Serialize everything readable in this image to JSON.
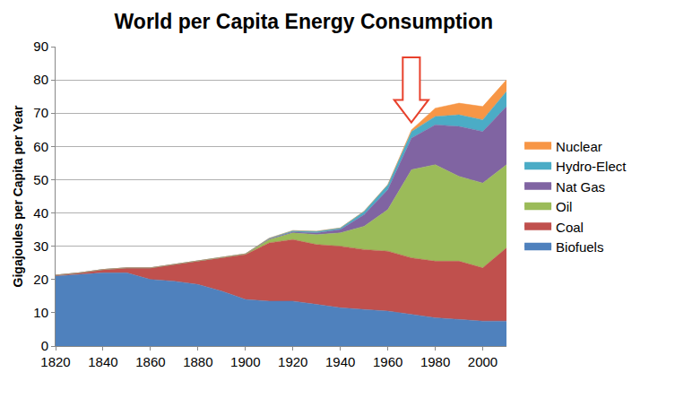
{
  "chart_data": {
    "type": "area",
    "title": "World per Capita Energy Consumption",
    "y_label": "Gigajoules per Capita per Year",
    "stacked": true,
    "grid": true,
    "legend": "right",
    "x": [
      1820,
      1830,
      1840,
      1850,
      1860,
      1870,
      1880,
      1890,
      1900,
      1910,
      1920,
      1930,
      1940,
      1950,
      1960,
      1970,
      1980,
      1990,
      2000,
      2010
    ],
    "xlim": [
      1820,
      2010
    ],
    "xticks": [
      1820,
      1840,
      1860,
      1880,
      1900,
      1920,
      1940,
      1960,
      1980,
      2000
    ],
    "ylim": [
      0,
      90
    ],
    "yticks": [
      0,
      10,
      20,
      30,
      40,
      50,
      60,
      70,
      80,
      90
    ],
    "series": [
      {
        "name": "Biofuels",
        "color": "#4f81bd",
        "values": [
          21,
          21.5,
          22,
          22,
          20,
          19.5,
          18.5,
          16.5,
          14,
          13.5,
          13.5,
          12.5,
          11.5,
          11,
          10.5,
          9.5,
          8.5,
          8,
          7.5,
          7.5
        ]
      },
      {
        "name": "Coal",
        "color": "#c0504d",
        "values": [
          0.3,
          0.5,
          1,
          1.5,
          3.5,
          5,
          7,
          10,
          13.5,
          17.5,
          18.5,
          18,
          18.5,
          18,
          18,
          17,
          17,
          17.5,
          16,
          22
        ]
      },
      {
        "name": "Oil",
        "color": "#9bbb59",
        "values": [
          0,
          0,
          0,
          0,
          0,
          0,
          0,
          0,
          0.2,
          1,
          2,
          3,
          4,
          7,
          12.5,
          26.5,
          29,
          25.5,
          25.5,
          25
        ]
      },
      {
        "name": "Nat Gas",
        "color": "#8064a2",
        "values": [
          0,
          0,
          0,
          0,
          0,
          0,
          0,
          0,
          0,
          0.2,
          0.3,
          0.5,
          1,
          3.5,
          6,
          9.5,
          12,
          15,
          15.5,
          17.5
        ]
      },
      {
        "name": "Hydro-Elect",
        "color": "#4bacc6",
        "values": [
          0,
          0,
          0,
          0,
          0,
          0,
          0,
          0,
          0,
          0.2,
          0.4,
          0.5,
          0.5,
          1,
          1.5,
          2,
          2.5,
          3.5,
          3.5,
          4.5
        ]
      },
      {
        "name": "Nuclear",
        "color": "#f79646",
        "values": [
          0,
          0,
          0,
          0,
          0,
          0,
          0,
          0,
          0,
          0,
          0,
          0,
          0,
          0,
          0,
          0.5,
          2.5,
          3.5,
          4,
          3.5
        ]
      }
    ]
  }
}
